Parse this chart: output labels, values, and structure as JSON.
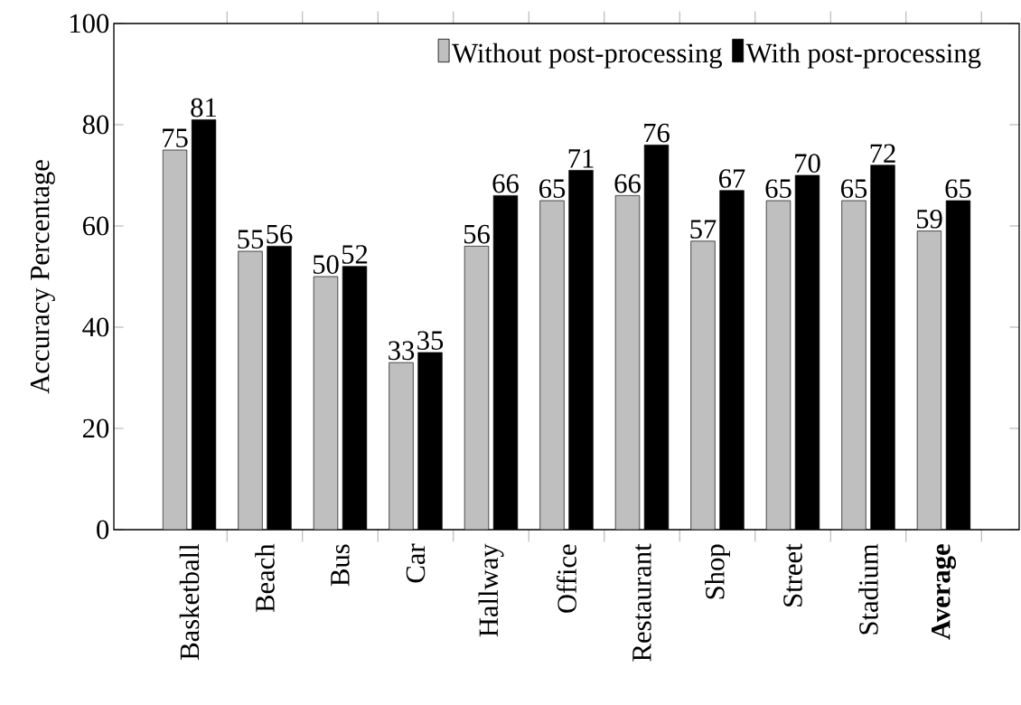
{
  "chart_data": {
    "type": "bar",
    "ylabel": "Accuracy Percentage",
    "categories": [
      "Basketball",
      "Beach",
      "Bus",
      "Car",
      "Hallway",
      "Office",
      "Restaurant",
      "Shop",
      "Street",
      "Stadium",
      "**Average**"
    ],
    "series": [
      {
        "name": "Without post-processing",
        "color": "#bfbfbf",
        "values": [
          75,
          55,
          50,
          33,
          56,
          65,
          66,
          57,
          65,
          65,
          59
        ]
      },
      {
        "name": "With post-processing",
        "color": "#000000",
        "values": [
          81,
          56,
          52,
          35,
          66,
          71,
          76,
          67,
          70,
          72,
          65
        ]
      }
    ],
    "ylim": [
      0,
      100
    ],
    "yticks": [
      0,
      20,
      40,
      60,
      80,
      100
    ],
    "data_labels": true,
    "legend": "top right"
  }
}
